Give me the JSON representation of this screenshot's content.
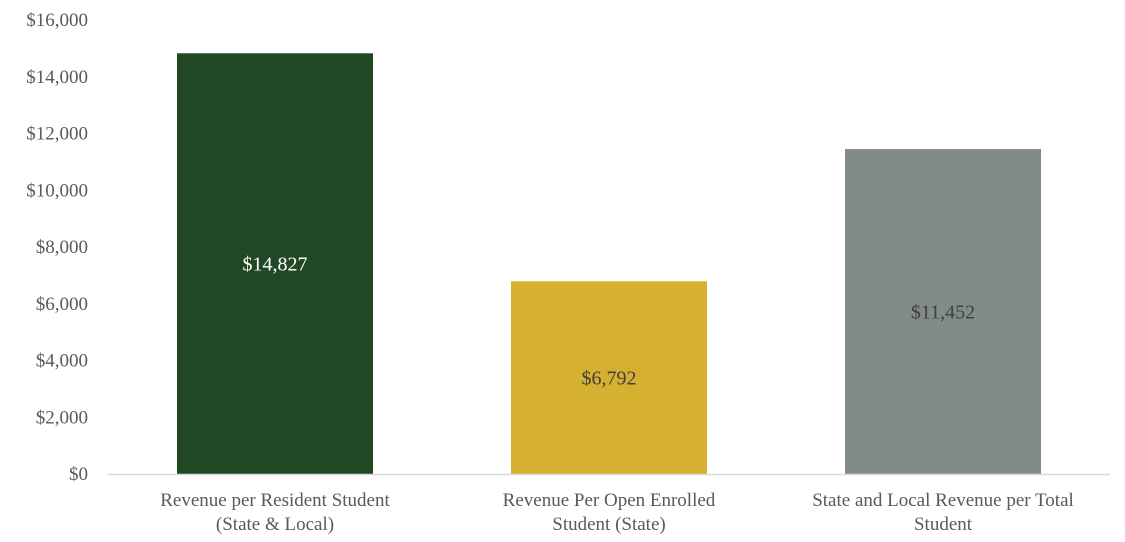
{
  "chart_data": {
    "type": "bar",
    "categories": [
      [
        "Revenue per Resident Student",
        "(State & Local)"
      ],
      [
        "Revenue Per Open Enrolled",
        "Student (State)"
      ],
      [
        "State and Local Revenue per Total",
        "Student"
      ]
    ],
    "values": [
      14827,
      6792,
      11452
    ],
    "data_labels": [
      "$14,827",
      "$6,792",
      "$11,452"
    ],
    "bar_colors": [
      "#214824",
      "#d6b030",
      "#818c86"
    ],
    "data_label_colors": [
      "#ffffff",
      "#404040",
      "#404040"
    ],
    "ylim": [
      0,
      16000
    ],
    "yticks": [
      0,
      2000,
      4000,
      6000,
      8000,
      10000,
      12000,
      14000,
      16000
    ],
    "ytick_labels": [
      "$0",
      "$2,000",
      "$4,000",
      "$6,000",
      "$8,000",
      "$10,000",
      "$12,000",
      "$14,000",
      "$16,000"
    ],
    "grid": false,
    "legend": "none"
  }
}
